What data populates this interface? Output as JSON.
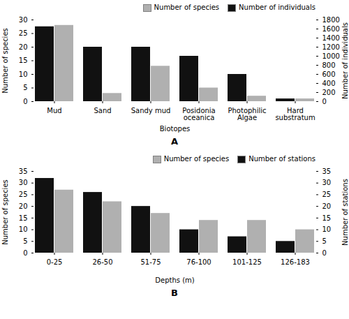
{
  "chart_data": [
    {
      "type": "bar",
      "title": "A",
      "categories": [
        "Mud",
        "Sand",
        "Sandy mud",
        "Posidonia\noceanica",
        "Photophilic\nAlgae",
        "Hard\nsubstratum"
      ],
      "xlabel": "Biotopes",
      "ylabel": "Number of species",
      "y2label": "Number of individuals",
      "series": [
        {
          "name": "Number of species",
          "color": "#b0b0b0",
          "values": [
            28,
            3,
            13,
            5,
            2,
            1
          ]
        },
        {
          "name": "Number of individuals",
          "color": "#111111",
          "values": [
            1650,
            1200,
            1200,
            1000,
            600,
            60
          ],
          "axis": "y2"
        }
      ],
      "ylim": [
        0,
        30
      ],
      "yticks": [
        0,
        5,
        10,
        15,
        20,
        25,
        30
      ],
      "y2lim": [
        0,
        1800
      ],
      "y2ticks": [
        0,
        200,
        400,
        600,
        800,
        1000,
        1200,
        1400,
        1600,
        1800
      ],
      "legend": "upper right"
    },
    {
      "type": "bar",
      "title": "B",
      "categories": [
        "0-25",
        "26-50",
        "51-75",
        "76-100",
        "101-125",
        "126-183"
      ],
      "xlabel": "Depths (m)",
      "ylabel": "Number of species",
      "y2label": "Number of stations",
      "series": [
        {
          "name": "Number of species",
          "color": "#b0b0b0",
          "values": [
            27,
            22,
            17,
            14,
            14,
            10
          ]
        },
        {
          "name": "Number of stations",
          "color": "#111111",
          "values": [
            32,
            26,
            20,
            10,
            7,
            5
          ],
          "axis": "y2"
        }
      ],
      "ylim": [
        0,
        35
      ],
      "yticks": [
        0,
        5,
        10,
        15,
        20,
        25,
        30,
        35
      ],
      "y2lim": [
        0,
        35
      ],
      "y2ticks": [
        0,
        5,
        10,
        15,
        20,
        25,
        30,
        35
      ],
      "legend": "upper right"
    }
  ]
}
